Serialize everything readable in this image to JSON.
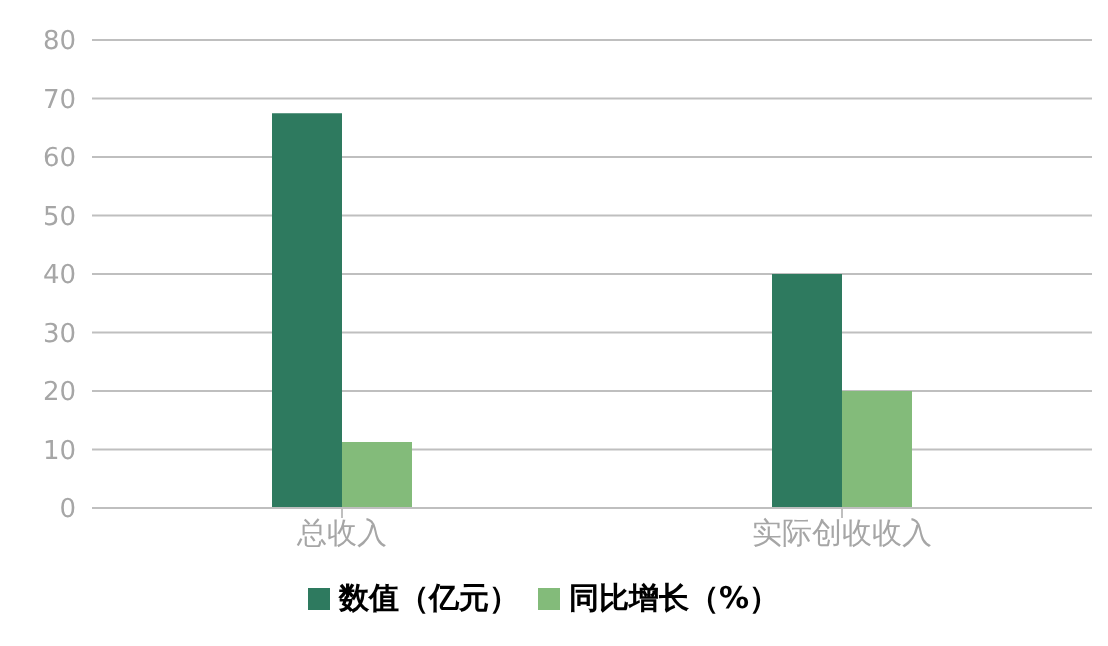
{
  "chart_data": {
    "type": "bar",
    "categories": [
      "总收入",
      "实际创收收入"
    ],
    "series": [
      {
        "name": "数值（亿元）",
        "color": "#2e7a5f",
        "values": [
          67.5,
          40
        ]
      },
      {
        "name": "同比增长（%）",
        "color": "#83bb7a",
        "values": [
          11.3,
          20
        ]
      }
    ],
    "ylim": [
      0,
      80
    ],
    "yticks": [
      0,
      10,
      20,
      30,
      40,
      50,
      60,
      70,
      80
    ],
    "grid": "y",
    "legend": "bottom"
  }
}
